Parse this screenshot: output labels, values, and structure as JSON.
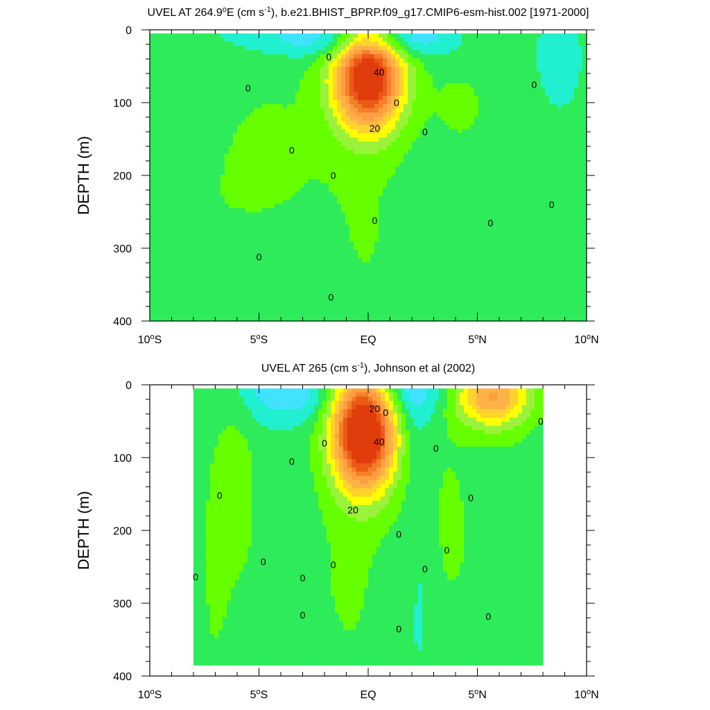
{
  "chart_data": [
    {
      "type": "contour",
      "title_prefix": "UVEL AT 264.9",
      "title_deg": "o",
      "title_mid": "E (cm s",
      "title_sup": "-1",
      "title_suffix": "), b.e21.BHIST_BPRP.f09_g17.CMIP6-esm-hist.002 [1971-2000]",
      "ylabel": "DEPTH (m)",
      "xlim": [
        -10,
        10
      ],
      "ylim": [
        0,
        400
      ],
      "x_ticks": [
        {
          "value": -10,
          "label": "10",
          "deg": "o",
          "hemi": "S"
        },
        {
          "value": -5,
          "label": "5",
          "deg": "o",
          "hemi": "S"
        },
        {
          "value": 0,
          "label": "EQ",
          "deg": "",
          "hemi": ""
        },
        {
          "value": 5,
          "label": "5",
          "deg": "o",
          "hemi": "N"
        },
        {
          "value": 10,
          "label": "10",
          "deg": "o",
          "hemi": "N"
        }
      ],
      "y_ticks": [
        0,
        100,
        200,
        300,
        400
      ],
      "y_tick_labels": [
        "0",
        "100",
        "200",
        "300",
        "400"
      ],
      "data_xrange": [
        -10,
        10
      ],
      "data_depth_max": 400,
      "blobs": [
        {
          "x": 0,
          "d": 65,
          "sx": 1.1,
          "sd": 50,
          "a": 52
        },
        {
          "x": 0,
          "d": 20,
          "sx": 2.5,
          "sd": 15,
          "a": -5
        },
        {
          "x": -2.3,
          "d": 5,
          "sx": 2.8,
          "sd": 22,
          "a": -9
        },
        {
          "x": 1.9,
          "d": 8,
          "sx": 1.3,
          "sd": 18,
          "a": -7
        },
        {
          "x": -4.5,
          "d": 170,
          "sx": 2.5,
          "sd": 120,
          "a": 4
        },
        {
          "x": 0,
          "d": 300,
          "sx": 1.5,
          "sd": 160,
          "a": 3
        },
        {
          "x": 4.2,
          "d": 100,
          "sx": 1.0,
          "sd": 40,
          "a": 3
        },
        {
          "x": 4.5,
          "d": 250,
          "sx": 2.0,
          "sd": 170,
          "a": 2
        },
        {
          "x": 8.7,
          "d": 40,
          "sx": 0.9,
          "sd": 60,
          "a": -3
        },
        {
          "x": -9,
          "d": 330,
          "sx": 2,
          "sd": 120,
          "a": 3
        }
      ],
      "contour_labels": [
        {
          "text": "40",
          "x": 0.5,
          "d": 58
        },
        {
          "text": "20",
          "x": 0.3,
          "d": 135
        },
        {
          "text": "0",
          "x": -1.8,
          "d": 37
        },
        {
          "text": "0",
          "x": -5.5,
          "d": 80
        },
        {
          "text": "0",
          "x": 1.3,
          "d": 100
        },
        {
          "text": "0",
          "x": 2.6,
          "d": 140
        },
        {
          "text": "0",
          "x": -3.5,
          "d": 165
        },
        {
          "text": "0",
          "x": -1.6,
          "d": 200
        },
        {
          "text": "0",
          "x": 0.3,
          "d": 262
        },
        {
          "text": "0",
          "x": 5.6,
          "d": 265
        },
        {
          "text": "0",
          "x": 7.6,
          "d": 75
        },
        {
          "text": "0",
          "x": 8.4,
          "d": 240
        },
        {
          "text": "0",
          "x": -5.0,
          "d": 312
        },
        {
          "text": "0",
          "x": -1.7,
          "d": 367
        }
      ]
    },
    {
      "type": "contour",
      "title_prefix": "UVEL AT 265 (cm s",
      "title_deg": "",
      "title_mid": "",
      "title_sup": "-1",
      "title_suffix": "), Johnson et al (2002)",
      "ylabel": "DEPTH (m)",
      "xlim": [
        -10,
        10
      ],
      "ylim": [
        0,
        400
      ],
      "x_ticks": [
        {
          "value": -10,
          "label": "10",
          "deg": "o",
          "hemi": "S"
        },
        {
          "value": -5,
          "label": "5",
          "deg": "o",
          "hemi": "S"
        },
        {
          "value": 0,
          "label": "EQ",
          "deg": "",
          "hemi": ""
        },
        {
          "value": 5,
          "label": "5",
          "deg": "o",
          "hemi": "N"
        },
        {
          "value": 10,
          "label": "10",
          "deg": "o",
          "hemi": "N"
        }
      ],
      "y_ticks": [
        0,
        100,
        200,
        300,
        400
      ],
      "y_tick_labels": [
        "0",
        "100",
        "200",
        "300",
        "400"
      ],
      "data_xrange": [
        -8,
        8
      ],
      "data_depth_max": 385,
      "blobs": [
        {
          "x": -0.2,
          "d": 65,
          "sx": 1.0,
          "sd": 55,
          "a": 58
        },
        {
          "x": 5.7,
          "d": 15,
          "sx": 1.2,
          "sd": 30,
          "a": 28
        },
        {
          "x": -4.1,
          "d": 5,
          "sx": 1.2,
          "sd": 30,
          "a": -10
        },
        {
          "x": 1.9,
          "d": 5,
          "sx": 1.2,
          "sd": 30,
          "a": -11
        },
        {
          "x": -2.5,
          "d": 15,
          "sx": 1.0,
          "sd": 25,
          "a": -4
        },
        {
          "x": 2.0,
          "d": 70,
          "sx": 0.5,
          "sd": 35,
          "a": -3
        },
        {
          "x": -5.9,
          "d": 150,
          "sx": 0.6,
          "sd": 80,
          "a": 6
        },
        {
          "x": -7.0,
          "d": 250,
          "sx": 0.7,
          "sd": 180,
          "a": 4
        },
        {
          "x": -0.8,
          "d": 260,
          "sx": 1.6,
          "sd": 150,
          "a": 4
        },
        {
          "x": 3.5,
          "d": 180,
          "sx": 0.8,
          "sd": 110,
          "a": 3
        },
        {
          "x": 6.0,
          "d": 250,
          "sx": 1.8,
          "sd": 180,
          "a": 3
        },
        {
          "x": -4.0,
          "d": 320,
          "sx": 0.9,
          "sd": 60,
          "a": 2
        },
        {
          "x": 1.4,
          "d": 340,
          "sx": 0.7,
          "sd": 60,
          "a": -2
        },
        {
          "x": 2.5,
          "d": 250,
          "sx": 0.4,
          "sd": 120,
          "a": -3
        }
      ],
      "contour_labels": [
        {
          "text": "20",
          "x": 0.3,
          "d": 33
        },
        {
          "text": "40",
          "x": 0.5,
          "d": 78
        },
        {
          "text": "20",
          "x": -0.7,
          "d": 172
        },
        {
          "text": "0",
          "x": 0.8,
          "d": 38
        },
        {
          "text": "0",
          "x": -2.0,
          "d": 80
        },
        {
          "text": "0",
          "x": 3.1,
          "d": 87
        },
        {
          "text": "0",
          "x": -3.5,
          "d": 105
        },
        {
          "text": "0",
          "x": -6.8,
          "d": 152
        },
        {
          "text": "0",
          "x": 4.7,
          "d": 155
        },
        {
          "text": "0",
          "x": 7.9,
          "d": 50
        },
        {
          "text": "0",
          "x": 1.4,
          "d": 205
        },
        {
          "text": "0",
          "x": 3.6,
          "d": 227
        },
        {
          "text": "0",
          "x": -4.8,
          "d": 243
        },
        {
          "text": "0",
          "x": -1.6,
          "d": 247
        },
        {
          "text": "0",
          "x": 2.6,
          "d": 253
        },
        {
          "text": "0",
          "x": -3.0,
          "d": 265
        },
        {
          "text": "0",
          "x": -7.9,
          "d": 264
        },
        {
          "text": "0",
          "x": -3.0,
          "d": 316
        },
        {
          "text": "0",
          "x": 5.5,
          "d": 318
        },
        {
          "text": "0",
          "x": 1.4,
          "d": 335
        }
      ]
    }
  ],
  "colors": {
    "levels": [
      -15,
      -10,
      -5,
      0,
      5,
      10,
      15,
      20,
      25,
      30,
      35,
      40,
      45
    ],
    "fills": [
      "#1E90FF",
      "#3FBEFF",
      "#40E2FF",
      "#20F0D0",
      "#2EEB5A",
      "#66FF00",
      "#9BF23A",
      "#FFFF00",
      "#FFD22E",
      "#FFB347",
      "#FFA040",
      "#F57F2A",
      "#EB5A16",
      "#E03C0C"
    ]
  }
}
